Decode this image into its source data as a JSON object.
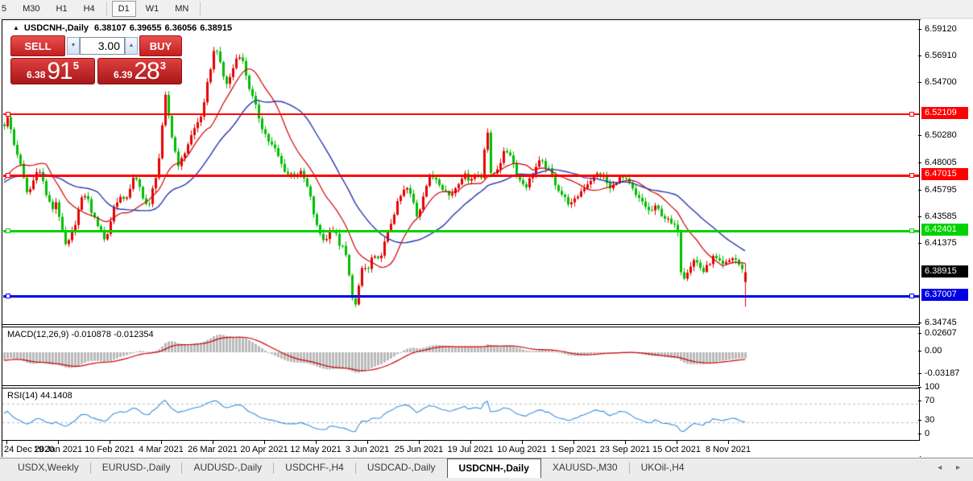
{
  "toolbar": {
    "timeframes": [
      {
        "label": "5",
        "active": false
      },
      {
        "label": "M30",
        "active": false
      },
      {
        "label": "H1",
        "active": false
      },
      {
        "label": "H4",
        "active": false
      },
      {
        "label": "D1",
        "active": true
      },
      {
        "label": "W1",
        "active": false
      },
      {
        "label": "MN",
        "active": false
      }
    ]
  },
  "chart": {
    "title": {
      "collapse_icon": "▲",
      "symbol": "USDCNH-,Daily",
      "open": "6.38107",
      "high": "6.39655",
      "low": "6.36056",
      "close": "6.38915"
    },
    "trade_panel": {
      "sell_label": "SELL",
      "buy_label": "BUY",
      "volume": "3.00",
      "spin_down": "▼",
      "spin_up": "▲",
      "sell_quote": {
        "small": "6.38",
        "big": "91",
        "sup": "5"
      },
      "buy_quote": {
        "small": "6.39",
        "big": "28",
        "sup": "3"
      }
    },
    "indicators": {
      "macd_label": "MACD(12,26,9) -0.010878 -0.012354",
      "rsi_label": "RSI(14) 44.1408"
    },
    "y_axis_ticks": [
      "6.59120",
      "6.56910",
      "6.54700",
      "6.50280",
      "6.48005",
      "6.45795",
      "6.43585",
      "6.41375",
      "6.34745"
    ],
    "macd_ticks": [
      {
        "label": "0.02607",
        "v": 0.02607
      },
      {
        "label": "0.00",
        "v": 0.0
      },
      {
        "label": "-0.03187",
        "v": -0.03187
      }
    ],
    "rsi_ticks": [
      {
        "label": "100",
        "v": 100
      },
      {
        "label": "70",
        "v": 70
      },
      {
        "label": "30",
        "v": 30
      },
      {
        "label": "0",
        "v": 0
      }
    ],
    "x_axis_dates": [
      "24 Dec 2020",
      "19 Jan 2021",
      "10 Feb 2021",
      "4 Mar 2021",
      "26 Mar 2021",
      "20 Apr 2021",
      "12 May 2021",
      "3 Jun 2021",
      "25 Jun 2021",
      "19 Jul 2021",
      "10 Aug 2021",
      "1 Sep 2021",
      "23 Sep 2021",
      "15 Oct 2021",
      "8 Nov 2021"
    ]
  },
  "chart_data": {
    "type": "candlestick",
    "symbol": "USDCNH-",
    "timeframe": "Daily",
    "last_candle": {
      "open": 6.38107,
      "high": 6.39655,
      "low": 6.36056,
      "close": 6.38915
    },
    "levels": [
      {
        "price": 6.52109,
        "color": "#ff0000",
        "thickness": 2
      },
      {
        "price": 6.47015,
        "color": "#ff0000",
        "thickness": 3
      },
      {
        "price": 6.42401,
        "color": "#00d200",
        "thickness": 3
      },
      {
        "price": 6.37007,
        "color": "#0000e6",
        "thickness": 3
      }
    ],
    "current_price": {
      "value": 6.38915,
      "label": "6.38915",
      "bg": "#000000"
    },
    "y_range": {
      "top": 6.5986,
      "bottom": 6.3467
    },
    "macd_range": {
      "top": 0.0353,
      "bottom": -0.0481
    },
    "rsi_levels": [
      70,
      30
    ],
    "indicators": {
      "macd": {
        "params": [
          12,
          26,
          9
        ],
        "value": -0.010878,
        "signal": -0.012354
      },
      "rsi": {
        "period": 14,
        "value": 44.1408
      }
    },
    "colors": {
      "bull": "#e60000",
      "bear": "#00bd00",
      "ma_fast": "#cf0000",
      "ma_slow": "#2636ad",
      "macd_hist": "#b9b9b9",
      "macd_signal": "#cc0000",
      "rsi_line": "#3e8ede"
    },
    "price_path": [
      [
        5,
        6.512
      ],
      [
        10,
        6.518
      ],
      [
        16,
        6.497
      ],
      [
        22,
        6.486
      ],
      [
        28,
        6.469
      ],
      [
        34,
        6.453
      ],
      [
        40,
        6.463
      ],
      [
        46,
        6.477
      ],
      [
        52,
        6.467
      ],
      [
        58,
        6.451
      ],
      [
        64,
        6.441
      ],
      [
        70,
        6.449
      ],
      [
        76,
        6.424
      ],
      [
        82,
        6.409
      ],
      [
        88,
        6.419
      ],
      [
        94,
        6.433
      ],
      [
        100,
        6.448
      ],
      [
        106,
        6.455
      ],
      [
        112,
        6.442
      ],
      [
        118,
        6.431
      ],
      [
        124,
        6.427
      ],
      [
        130,
        6.414
      ],
      [
        136,
        6.429
      ],
      [
        142,
        6.446
      ],
      [
        148,
        6.452
      ],
      [
        154,
        6.447
      ],
      [
        160,
        6.458
      ],
      [
        166,
        6.468
      ],
      [
        172,
        6.461
      ],
      [
        178,
        6.451
      ],
      [
        184,
        6.441
      ],
      [
        190,
        6.461
      ],
      [
        196,
        6.478
      ],
      [
        202,
        6.515
      ],
      [
        206,
        6.541
      ],
      [
        210,
        6.512
      ],
      [
        216,
        6.492
      ],
      [
        222,
        6.477
      ],
      [
        228,
        6.487
      ],
      [
        234,
        6.498
      ],
      [
        240,
        6.507
      ],
      [
        246,
        6.515
      ],
      [
        252,
        6.524
      ],
      [
        258,
        6.549
      ],
      [
        264,
        6.57
      ],
      [
        268,
        6.578
      ],
      [
        274,
        6.558
      ],
      [
        280,
        6.545
      ],
      [
        286,
        6.552
      ],
      [
        292,
        6.566
      ],
      [
        298,
        6.571
      ],
      [
        304,
        6.556
      ],
      [
        310,
        6.54
      ],
      [
        318,
        6.524
      ],
      [
        326,
        6.508
      ],
      [
        334,
        6.497
      ],
      [
        342,
        6.49
      ],
      [
        350,
        6.477
      ],
      [
        358,
        6.47
      ],
      [
        366,
        6.472
      ],
      [
        374,
        6.471
      ],
      [
        380,
        6.462
      ],
      [
        386,
        6.448
      ],
      [
        392,
        6.428
      ],
      [
        398,
        6.42
      ],
      [
        404,
        6.414
      ],
      [
        410,
        6.428
      ],
      [
        416,
        6.421
      ],
      [
        422,
        6.411
      ],
      [
        428,
        6.407
      ],
      [
        434,
        6.381
      ],
      [
        438,
        6.366
      ],
      [
        442,
        6.36
      ],
      [
        446,
        6.381
      ],
      [
        450,
        6.396
      ],
      [
        456,
        6.389
      ],
      [
        462,
        6.403
      ],
      [
        468,
        6.397
      ],
      [
        474,
        6.407
      ],
      [
        480,
        6.419
      ],
      [
        488,
        6.437
      ],
      [
        496,
        6.451
      ],
      [
        504,
        6.46
      ],
      [
        512,
        6.449
      ],
      [
        518,
        6.434
      ],
      [
        526,
        6.457
      ],
      [
        534,
        6.469
      ],
      [
        542,
        6.467
      ],
      [
        550,
        6.459
      ],
      [
        558,
        6.452
      ],
      [
        566,
        6.461
      ],
      [
        574,
        6.47
      ],
      [
        582,
        6.467
      ],
      [
        590,
        6.47
      ],
      [
        598,
        6.468
      ],
      [
        604,
        6.518
      ],
      [
        608,
        6.469
      ],
      [
        614,
        6.472
      ],
      [
        620,
        6.48
      ],
      [
        626,
        6.489
      ],
      [
        632,
        6.49
      ],
      [
        638,
        6.477
      ],
      [
        646,
        6.464
      ],
      [
        654,
        6.461
      ],
      [
        662,
        6.474
      ],
      [
        670,
        6.481
      ],
      [
        678,
        6.477
      ],
      [
        686,
        6.467
      ],
      [
        694,
        6.457
      ],
      [
        702,
        6.449
      ],
      [
        710,
        6.445
      ],
      [
        718,
        6.454
      ],
      [
        726,
        6.461
      ],
      [
        734,
        6.467
      ],
      [
        742,
        6.471
      ],
      [
        750,
        6.467
      ],
      [
        758,
        6.457
      ],
      [
        766,
        6.467
      ],
      [
        774,
        6.467
      ],
      [
        782,
        6.461
      ],
      [
        790,
        6.451
      ],
      [
        798,
        6.447
      ],
      [
        806,
        6.439
      ],
      [
        814,
        6.443
      ],
      [
        822,
        6.437
      ],
      [
        830,
        6.431
      ],
      [
        836,
        6.427
      ],
      [
        842,
        6.424
      ],
      [
        846,
        6.38
      ],
      [
        850,
        6.388
      ],
      [
        856,
        6.394
      ],
      [
        862,
        6.4
      ],
      [
        868,
        6.394
      ],
      [
        874,
        6.389
      ],
      [
        880,
        6.397
      ],
      [
        886,
        6.402
      ],
      [
        892,
        6.397
      ],
      [
        898,
        6.394
      ],
      [
        904,
        6.398
      ],
      [
        910,
        6.402
      ],
      [
        916,
        6.397
      ],
      [
        920,
        6.391
      ],
      [
        925,
        6.389
      ]
    ]
  },
  "tabs": {
    "items": [
      {
        "label": "USDX,Weekly",
        "active": false
      },
      {
        "label": "EURUSD-,Daily",
        "active": false
      },
      {
        "label": "AUDUSD-,Daily",
        "active": false
      },
      {
        "label": "USDCHF-,H4",
        "active": false
      },
      {
        "label": "USDCAD-,Daily",
        "active": false
      },
      {
        "label": "USDCNH-,Daily",
        "active": true
      },
      {
        "label": "XAUUSD-,M30",
        "active": false
      },
      {
        "label": "UKOil-,H4",
        "active": false
      }
    ],
    "scroll_left": "◄",
    "scroll_right": "►"
  }
}
